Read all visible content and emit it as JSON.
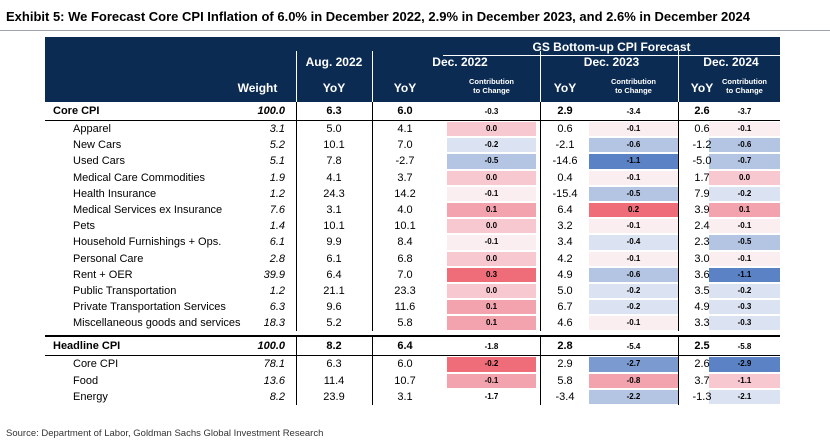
{
  "title": "Exhibit 5: We Forecast Core CPI Inflation of 6.0% in December 2022, 2.9% in December 2023, and 2.6% in December 2024",
  "header": {
    "group": "GS Bottom-up CPI Forecast",
    "weight": "Weight",
    "aug": "Aug. 2022",
    "dec22": "Dec. 2022",
    "dec23": "Dec. 2023",
    "dec24": "Dec. 2024",
    "yoy": "YoY",
    "contrib_line1": "Contribution",
    "contrib_line2": "to Change"
  },
  "colors": {
    "header_bg": "#0b2b53",
    "neutral": "#fbeef1",
    "pink_light": "#f7c8cf",
    "pink_mid": "#f2a3ad",
    "red_strong": "#ee6d78",
    "blue_light": "#dbe2f1",
    "blue_mid": "#b4c4e3",
    "blue_strong": "#7b9bd0",
    "blue_darkest": "#5a82c4"
  },
  "rows": [
    {
      "label": "Core CPI",
      "bold": true,
      "weight": "100.0",
      "aug": "6.3",
      "y1": "6.0",
      "c1": "-0.3",
      "y2": "2.9",
      "c2": "-3.4",
      "y3": "2.6",
      "c3": "-3.7",
      "bg1": "",
      "bg2": "",
      "bg3": ""
    },
    {
      "label": "Apparel",
      "weight": "3.1",
      "aug": "5.0",
      "y1": "4.1",
      "c1": "0.0",
      "y2": "0.6",
      "c2": "-0.1",
      "y3": "0.6",
      "c3": "-0.1",
      "bg1": "pink_light",
      "bg2": "neutral",
      "bg3": "neutral"
    },
    {
      "label": "New Cars",
      "weight": "5.2",
      "aug": "10.1",
      "y1": "7.0",
      "c1": "-0.2",
      "y2": "-2.1",
      "c2": "-0.6",
      "y3": "-1.2",
      "c3": "-0.6",
      "bg1": "blue_light",
      "bg2": "blue_mid",
      "bg3": "blue_mid"
    },
    {
      "label": "Used Cars",
      "weight": "5.1",
      "aug": "7.8",
      "y1": "-2.7",
      "c1": "-0.5",
      "y2": "-14.6",
      "c2": "-1.1",
      "y3": "-5.0",
      "c3": "-0.7",
      "bg1": "blue_mid",
      "bg2": "blue_darkest",
      "bg3": "blue_mid"
    },
    {
      "label": "Medical Care Commodities",
      "weight": "1.9",
      "aug": "4.1",
      "y1": "3.7",
      "c1": "0.0",
      "y2": "0.4",
      "c2": "-0.1",
      "y3": "1.7",
      "c3": "0.0",
      "bg1": "pink_light",
      "bg2": "neutral",
      "bg3": "pink_light"
    },
    {
      "label": "Health Insurance",
      "weight": "1.2",
      "aug": "24.3",
      "y1": "14.2",
      "c1": "-0.1",
      "y2": "-15.4",
      "c2": "-0.5",
      "y3": "7.9",
      "c3": "-0.2",
      "bg1": "neutral",
      "bg2": "blue_mid",
      "bg3": "blue_light"
    },
    {
      "label": "Medical Services ex Insurance",
      "weight": "7.6",
      "aug": "3.1",
      "y1": "4.0",
      "c1": "0.1",
      "y2": "6.4",
      "c2": "0.2",
      "y3": "3.9",
      "c3": "0.1",
      "bg1": "pink_mid",
      "bg2": "red_strong",
      "bg3": "pink_mid"
    },
    {
      "label": "Pets",
      "weight": "1.4",
      "aug": "10.1",
      "y1": "10.1",
      "c1": "0.0",
      "y2": "3.2",
      "c2": "-0.1",
      "y3": "2.4",
      "c3": "-0.1",
      "bg1": "pink_light",
      "bg2": "neutral",
      "bg3": "neutral"
    },
    {
      "label": "Household Furnishings + Ops.",
      "weight": "6.1",
      "aug": "9.9",
      "y1": "8.4",
      "c1": "-0.1",
      "y2": "3.4",
      "c2": "-0.4",
      "y3": "2.3",
      "c3": "-0.5",
      "bg1": "neutral",
      "bg2": "blue_light",
      "bg3": "blue_mid"
    },
    {
      "label": "Personal Care",
      "weight": "2.8",
      "aug": "6.1",
      "y1": "6.8",
      "c1": "0.0",
      "y2": "4.2",
      "c2": "-0.1",
      "y3": "3.0",
      "c3": "-0.1",
      "bg1": "pink_light",
      "bg2": "neutral",
      "bg3": "neutral"
    },
    {
      "label": "Rent + OER",
      "weight": "39.9",
      "aug": "6.4",
      "y1": "7.0",
      "c1": "0.3",
      "y2": "4.9",
      "c2": "-0.6",
      "y3": "3.6",
      "c3": "-1.1",
      "bg1": "red_strong",
      "bg2": "blue_mid",
      "bg3": "blue_darkest"
    },
    {
      "label": "Public Transportation",
      "weight": "1.2",
      "aug": "21.1",
      "y1": "23.3",
      "c1": "0.0",
      "y2": "5.0",
      "c2": "-0.2",
      "y3": "3.5",
      "c3": "-0.2",
      "bg1": "pink_light",
      "bg2": "blue_light",
      "bg3": "blue_light"
    },
    {
      "label": "Private Transportation Services",
      "weight": "6.3",
      "aug": "9.6",
      "y1": "11.6",
      "c1": "0.1",
      "y2": "6.7",
      "c2": "-0.2",
      "y3": "4.9",
      "c3": "-0.3",
      "bg1": "pink_mid",
      "bg2": "blue_light",
      "bg3": "blue_light"
    },
    {
      "label": "Miscellaneous goods and services",
      "weight": "18.3",
      "aug": "5.2",
      "y1": "5.8",
      "c1": "0.1",
      "y2": "4.6",
      "c2": "-0.1",
      "y3": "3.3",
      "c3": "-0.3",
      "bg1": "pink_mid",
      "bg2": "neutral",
      "bg3": "blue_light"
    },
    {
      "label": "Headline CPI",
      "bold": true,
      "weight": "100.0",
      "aug": "8.2",
      "y1": "6.4",
      "c1": "-1.8",
      "y2": "2.8",
      "c2": "-5.4",
      "y3": "2.5",
      "c3": "-5.8",
      "bg1": "",
      "bg2": "",
      "bg3": ""
    },
    {
      "label": "Core CPI",
      "weight": "78.1",
      "aug": "6.3",
      "y1": "6.0",
      "c1": "-0.2",
      "y2": "2.9",
      "c2": "-2.7",
      "y3": "2.6",
      "c3": "-2.9",
      "bg1": "red_strong",
      "bg2": "blue_strong",
      "bg3": "blue_darkest",
      "plain": true
    },
    {
      "label": "Food",
      "weight": "13.6",
      "aug": "11.4",
      "y1": "10.7",
      "c1": "-0.1",
      "y2": "5.8",
      "c2": "-0.8",
      "y3": "3.7",
      "c3": "-1.1",
      "bg1": "pink_mid",
      "bg2": "pink_mid",
      "bg3": "pink_light",
      "plain": true
    },
    {
      "label": "Energy",
      "weight": "8.2",
      "aug": "23.9",
      "y1": "3.1",
      "c1": "-1.7",
      "y2": "-3.4",
      "c2": "-2.2",
      "y3": "-1.3",
      "c3": "-2.1",
      "bg1": "",
      "bg2": "blue_mid",
      "bg3": "blue_light",
      "plain": true
    }
  ],
  "source": "Source: Department of Labor, Goldman Sachs Global Investment Research"
}
